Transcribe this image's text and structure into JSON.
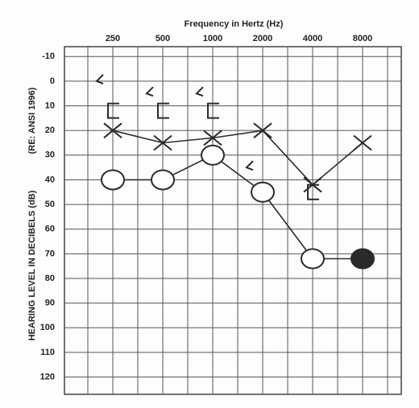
{
  "chart_data": {
    "type": "audiogram",
    "title": "Frequency in Hertz (Hz)",
    "ylabel": "HEARING LEVEL IN DECIBELS (dB)",
    "ylabel_note": "(RE: ANSI 1996)",
    "categories": [
      "250",
      "500",
      "1000",
      "2000",
      "4000",
      "8000"
    ],
    "ylim": [
      -14,
      127
    ],
    "y_inverted": true,
    "yticks": [
      -10,
      0,
      10,
      20,
      30,
      40,
      50,
      60,
      70,
      80,
      90,
      100,
      110,
      120
    ],
    "grid": true,
    "series": [
      {
        "marker": "x",
        "line": true,
        "color": "#2a2a2a",
        "values": [
          20,
          25,
          23,
          20,
          42,
          25
        ]
      },
      {
        "marker": "o",
        "line": true,
        "color": "#2a2a2a",
        "values": [
          40,
          40,
          30,
          45,
          72,
          72
        ],
        "filled": [
          false,
          false,
          false,
          false,
          false,
          true
        ]
      },
      {
        "marker": "<",
        "line": false,
        "color": "#2a2a2a",
        "values": [
          0,
          5,
          5,
          35,
          null,
          null
        ]
      },
      {
        "marker": "[",
        "line": false,
        "color": "#2a2a2a",
        "values": [
          12,
          12,
          12,
          null,
          45,
          null
        ]
      }
    ]
  }
}
